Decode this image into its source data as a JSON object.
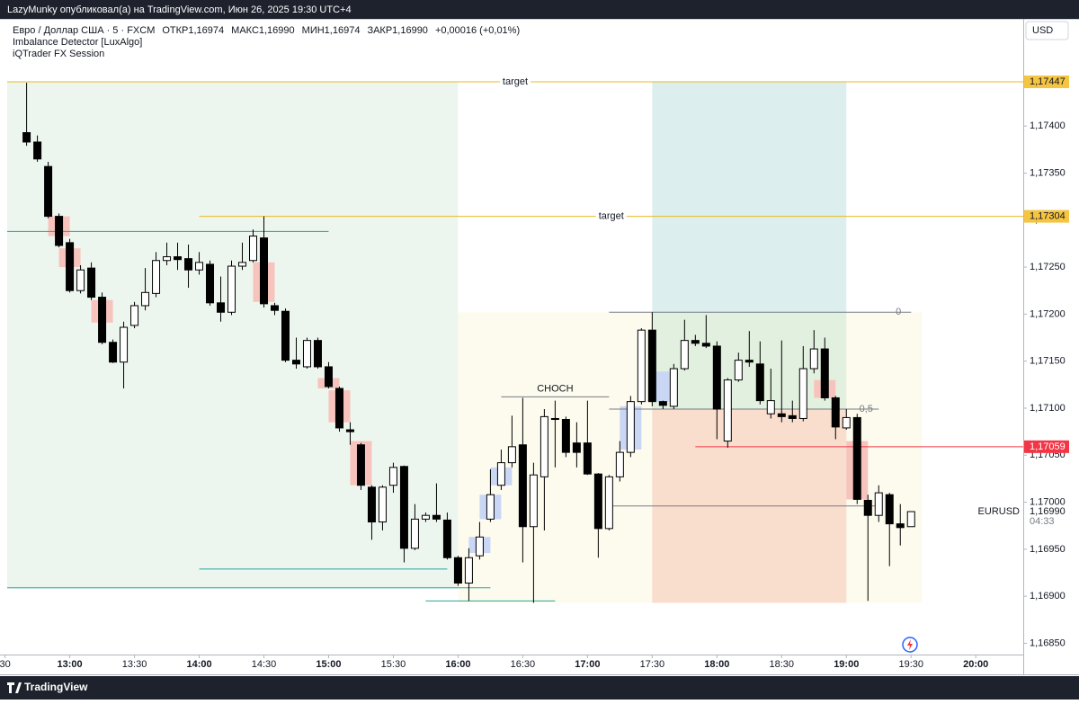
{
  "header": {
    "publisher": "LazyMunky опубликовал(а) на TradingView.com, Июн 26, 2025 19:30 UTC+4",
    "symbol": "Евро / Доллар США · 5 · FXCM",
    "ohlc": [
      "ОТКР1,16974",
      "МАКС1,16990",
      "МИН1,16974",
      "ЗАКР1,16990",
      "+0,00016 (+0,01%)"
    ],
    "indicators": [
      "Imbalance Detector [LuxAlgo]",
      "iQTrader FX Session"
    ],
    "currency": "USD",
    "footer": "TradingView"
  },
  "chart_data": {
    "type": "candlestick",
    "x": [
      "12:40",
      "12:45",
      "12:50",
      "12:55",
      "13:00",
      "13:05",
      "13:10",
      "13:15",
      "13:20",
      "13:25",
      "13:30",
      "13:35",
      "13:40",
      "13:45",
      "13:50",
      "13:55",
      "14:00",
      "14:05",
      "14:10",
      "14:15",
      "14:20",
      "14:25",
      "14:30",
      "14:35",
      "14:40",
      "14:45",
      "14:50",
      "14:55",
      "15:00",
      "15:05",
      "15:10",
      "15:15",
      "15:20",
      "15:25",
      "15:30",
      "15:35",
      "15:40",
      "15:45",
      "15:50",
      "15:55",
      "16:00",
      "16:05",
      "16:10",
      "16:15",
      "16:20",
      "16:25",
      "16:30",
      "16:35",
      "16:40",
      "16:45",
      "16:50",
      "16:55",
      "17:00",
      "17:05",
      "17:10",
      "17:15",
      "17:20",
      "17:25",
      "17:30",
      "17:35",
      "17:40",
      "17:45",
      "17:50",
      "17:55",
      "18:00",
      "18:05",
      "18:10",
      "18:15",
      "18:20",
      "18:25",
      "18:30",
      "18:35",
      "18:40",
      "18:45",
      "18:50",
      "18:55",
      "19:00",
      "19:05",
      "19:10",
      "19:15",
      "19:20",
      "19:25",
      "19:30"
    ],
    "open": [
      1.17393,
      1.17383,
      1.17357,
      1.17304,
      1.17276,
      1.17225,
      1.17249,
      1.17218,
      1.1717,
      1.17149,
      1.17188,
      1.17209,
      1.17222,
      1.17257,
      1.17261,
      1.17259,
      1.17247,
      1.17253,
      1.17212,
      1.17202,
      1.17251,
      1.17257,
      1.17281,
      1.17209,
      1.17203,
      1.17151,
      1.17144,
      1.17172,
      1.17144,
      1.17121,
      1.17077,
      1.17061,
      1.17016,
      1.16979,
      1.17018,
      1.17038,
      1.16951,
      1.16982,
      1.16986,
      1.16981,
      1.16941,
      1.16914,
      1.16943,
      1.16982,
      1.17018,
      1.17042,
      1.17061,
      1.16974,
      1.17027,
      1.17089,
      1.17088,
      1.17063,
      1.17063,
      1.1703,
      1.16972,
      1.17027,
      1.17053,
      1.17107,
      1.17183,
      1.17107,
      1.17102,
      1.17142,
      1.17172,
      1.17169,
      1.17166,
      1.17065,
      1.1713,
      1.17151,
      1.17147,
      1.17094,
      1.17094,
      1.17092,
      1.17089,
      1.17142,
      1.17163,
      1.17111,
      1.17079,
      1.1709,
      1.17002,
      1.16986,
      1.17008,
      1.16977,
      1.16974
    ],
    "high": [
      1.17446,
      1.1739,
      1.17362,
      1.17307,
      1.1728,
      1.17252,
      1.17255,
      1.17223,
      1.17173,
      1.17192,
      1.17213,
      1.17249,
      1.17266,
      1.17276,
      1.17276,
      1.17274,
      1.17266,
      1.17257,
      1.1724,
      1.17257,
      1.17276,
      1.1729,
      1.17304,
      1.17212,
      1.17206,
      1.17175,
      1.17175,
      1.17175,
      1.17149,
      1.17123,
      1.17085,
      1.17063,
      1.17018,
      1.17018,
      1.17042,
      1.17039,
      1.16998,
      1.16989,
      1.1702,
      1.16989,
      1.16943,
      1.16951,
      1.16979,
      1.17035,
      1.17056,
      1.17092,
      1.17111,
      1.17042,
      1.17099,
      1.17108,
      1.17091,
      1.17085,
      1.17108,
      1.17031,
      1.17029,
      1.17065,
      1.17113,
      1.17185,
      1.17202,
      1.17108,
      1.17147,
      1.17194,
      1.17178,
      1.17199,
      1.17171,
      1.17132,
      1.17159,
      1.17182,
      1.17171,
      1.17142,
      1.17172,
      1.17108,
      1.17166,
      1.17183,
      1.17175,
      1.17113,
      1.17099,
      1.17094,
      1.17008,
      1.17018,
      1.1701,
      1.16998,
      1.1699
    ],
    "low": [
      1.17379,
      1.17362,
      1.17302,
      1.17271,
      1.17223,
      1.17222,
      1.17215,
      1.17168,
      1.17148,
      1.17121,
      1.17185,
      1.17204,
      1.17218,
      1.17252,
      1.17247,
      1.17228,
      1.17242,
      1.17209,
      1.17192,
      1.17199,
      1.17247,
      1.17255,
      1.17207,
      1.17199,
      1.17149,
      1.17142,
      1.17142,
      1.17142,
      1.17121,
      1.17075,
      1.17061,
      1.17013,
      1.1696,
      1.1697,
      1.1701,
      1.16936,
      1.16949,
      1.16979,
      1.16979,
      1.16939,
      1.16911,
      1.16895,
      1.16939,
      1.16979,
      1.17013,
      1.17037,
      1.16936,
      1.16893,
      1.1697,
      1.17037,
      1.17048,
      1.17037,
      1.17029,
      1.16941,
      1.1697,
      1.17022,
      1.17048,
      1.17104,
      1.17102,
      1.17099,
      1.17099,
      1.1714,
      1.17166,
      1.17164,
      1.17067,
      1.17058,
      1.17128,
      1.17144,
      1.17104,
      1.17089,
      1.17085,
      1.17085,
      1.17086,
      1.17137,
      1.17108,
      1.17067,
      1.17077,
      1.16998,
      1.16895,
      1.16979,
      1.16932,
      1.16954,
      1.16974
    ],
    "close": [
      1.17383,
      1.17365,
      1.17304,
      1.17273,
      1.17225,
      1.17247,
      1.17218,
      1.1717,
      1.17149,
      1.17186,
      1.17209,
      1.17223,
      1.17257,
      1.17261,
      1.17258,
      1.17247,
      1.17255,
      1.17212,
      1.17202,
      1.17251,
      1.17255,
      1.17283,
      1.17211,
      1.17204,
      1.17151,
      1.17147,
      1.17172,
      1.17144,
      1.17123,
      1.17079,
      1.17075,
      1.17018,
      1.16979,
      1.17016,
      1.17037,
      1.16951,
      1.16982,
      1.16986,
      1.16982,
      1.16941,
      1.16914,
      1.16941,
      1.16963,
      1.17008,
      1.17042,
      1.17059,
      1.16974,
      1.17029,
      1.17091,
      1.17088,
      1.17053,
      1.17053,
      1.1703,
      1.16972,
      1.17027,
      1.17053,
      1.17107,
      1.17183,
      1.17107,
      1.17103,
      1.17142,
      1.17172,
      1.17169,
      1.17166,
      1.17099,
      1.1713,
      1.17151,
      1.17149,
      1.17108,
      1.17108,
      1.17091,
      1.17089,
      1.17142,
      1.17163,
      1.17111,
      1.1708,
      1.1709,
      1.17003,
      1.16986,
      1.1701,
      1.16977,
      1.16973,
      1.1699
    ],
    "up_color": "#ffffff",
    "down_color": "#000000",
    "wick_color": "#000000",
    "xlim": [
      "12:31",
      "20:22"
    ],
    "xticks": [
      {
        "value": "12:30",
        "label": "30"
      },
      "13:00",
      "13:30",
      "14:00",
      "14:30",
      "15:00",
      "15:30",
      "16:00",
      "16:30",
      "17:00",
      "17:30",
      "18:00",
      "18:30",
      "19:00",
      "19:30",
      "20:00"
    ],
    "ylim": [
      1.16838,
      1.17513
    ],
    "yticks": [
      {
        "value": 1.1685,
        "label": "1,16850"
      },
      {
        "value": 1.169,
        "label": "1,16900"
      },
      {
        "value": 1.1695,
        "label": "1,16950"
      },
      {
        "value": 1.17,
        "label": "1,17000"
      },
      {
        "value": 1.1705,
        "label": "1,17050"
      },
      {
        "value": 1.171,
        "label": "1,17100"
      },
      {
        "value": 1.1715,
        "label": "1,17150"
      },
      {
        "value": 1.172,
        "label": "1,17200"
      },
      {
        "value": 1.1725,
        "label": "1,17250"
      },
      {
        "value": 1.173,
        "label": "1,17300"
      },
      {
        "value": 1.1735,
        "label": "1,17350"
      },
      {
        "value": 1.174,
        "label": "1,17400"
      }
    ],
    "zones": [
      {
        "x": [
          "12:31",
          "16:00"
        ],
        "y": [
          1.16908,
          1.17447
        ],
        "color": "#edf6ee"
      },
      {
        "x": [
          "16:00",
          "19:35"
        ],
        "y": [
          1.16893,
          1.17202
        ],
        "color": "#fdfbee"
      },
      {
        "x": [
          "17:30",
          "19:00"
        ],
        "y": [
          1.17202,
          1.17447
        ],
        "color": "#dcefee"
      },
      {
        "x": [
          "17:30",
          "19:00"
        ],
        "y": [
          1.17099,
          1.17202
        ],
        "color": "#e2f0df"
      },
      {
        "x": [
          "17:30",
          "19:00"
        ],
        "y": [
          1.16893,
          1.17099
        ],
        "color": "#f9ddcd"
      }
    ],
    "imbalances": [
      {
        "x": "12:55",
        "y": [
          1.17283,
          1.17304
        ],
        "color": "#f7c3bd"
      },
      {
        "x": "13:00",
        "y": [
          1.1725,
          1.1727
        ],
        "color": "#f7c3bd"
      },
      {
        "x": "13:15",
        "y": [
          1.17191,
          1.17215
        ],
        "color": "#f7c3bd"
      },
      {
        "x": "14:30",
        "y": [
          1.17213,
          1.17255
        ],
        "color": "#f7c3bd"
      },
      {
        "x": "15:00",
        "y": [
          1.17121,
          1.17132
        ],
        "color": "#f7c3bd"
      },
      {
        "x": "15:05",
        "y": [
          1.17085,
          1.17119
        ],
        "color": "#f7c3bd"
      },
      {
        "x": "15:15",
        "y": [
          1.17018,
          1.17065
        ],
        "color": "#f7c3bd"
      },
      {
        "x": "18:50",
        "y": [
          1.17111,
          1.1713
        ],
        "color": "#f7c3bd"
      },
      {
        "x": "19:05",
        "y": [
          1.17003,
          1.17065
        ],
        "color": "#f7c3bd"
      },
      {
        "x": "16:10",
        "y": [
          1.16946,
          1.16963
        ],
        "color": "#c9d7f5"
      },
      {
        "x": "16:15",
        "y": [
          1.16982,
          1.17008
        ],
        "color": "#c9d7f5"
      },
      {
        "x": "16:20",
        "y": [
          1.17018,
          1.17037
        ],
        "color": "#c9d7f5"
      },
      {
        "x": "17:20",
        "y": [
          1.17056,
          1.17102
        ],
        "color": "#c9d7f5"
      },
      {
        "x": "17:35",
        "y": [
          1.17107,
          1.17139
        ],
        "color": "#c9d7f5"
      }
    ],
    "lines": [
      {
        "x": [
          "12:31",
          "20:22"
        ],
        "y": 1.17447,
        "color": "#e8b923",
        "label": "target",
        "label_align": "center"
      },
      {
        "x": [
          "14:00",
          "20:22"
        ],
        "y": 1.17304,
        "color": "#e8b923",
        "label": "target",
        "label_align": "center"
      },
      {
        "x": [
          "12:31",
          "15:00"
        ],
        "y": 1.17288,
        "color": "#26a69a"
      },
      {
        "x": [
          "14:00",
          "15:55"
        ],
        "y": 1.16929,
        "color": "#26a69a"
      },
      {
        "x": [
          "12:31",
          "16:15"
        ],
        "y": 1.16909,
        "color": "#26a69a"
      },
      {
        "x": [
          "15:45",
          "16:45"
        ],
        "y": 1.16895,
        "color": "#26a69a"
      },
      {
        "x": [
          "16:20",
          "17:10"
        ],
        "y": 1.17112,
        "color": "#787b86",
        "label": "CHOCH",
        "label_align": "center"
      },
      {
        "x": [
          "17:10",
          "19:30"
        ],
        "y": 1.17202,
        "color": "#787b86",
        "label": "0",
        "label_align": "end"
      },
      {
        "x": [
          "17:10",
          "19:15"
        ],
        "y": 1.17099,
        "color": "#787b86",
        "label": "0,5",
        "label_align": "end"
      },
      {
        "x": [
          "17:11",
          "19:15"
        ],
        "y": 1.16996,
        "color": "#787b86"
      },
      {
        "x": [
          "17:50",
          "20:22"
        ],
        "y": 1.17059,
        "color": "#f23645"
      }
    ],
    "price_tags": [
      {
        "value": 1.17447,
        "label": "1,17447",
        "color": "#f5c542"
      },
      {
        "value": 1.17304,
        "label": "1,17304",
        "color": "#f5c542"
      },
      {
        "value": 1.17059,
        "label": "1,17059",
        "color": "#f23645"
      }
    ],
    "last_price": {
      "symbol": "EURUSD",
      "value": 1.1699,
      "label": "1,16990",
      "countdown": "04:33"
    }
  }
}
